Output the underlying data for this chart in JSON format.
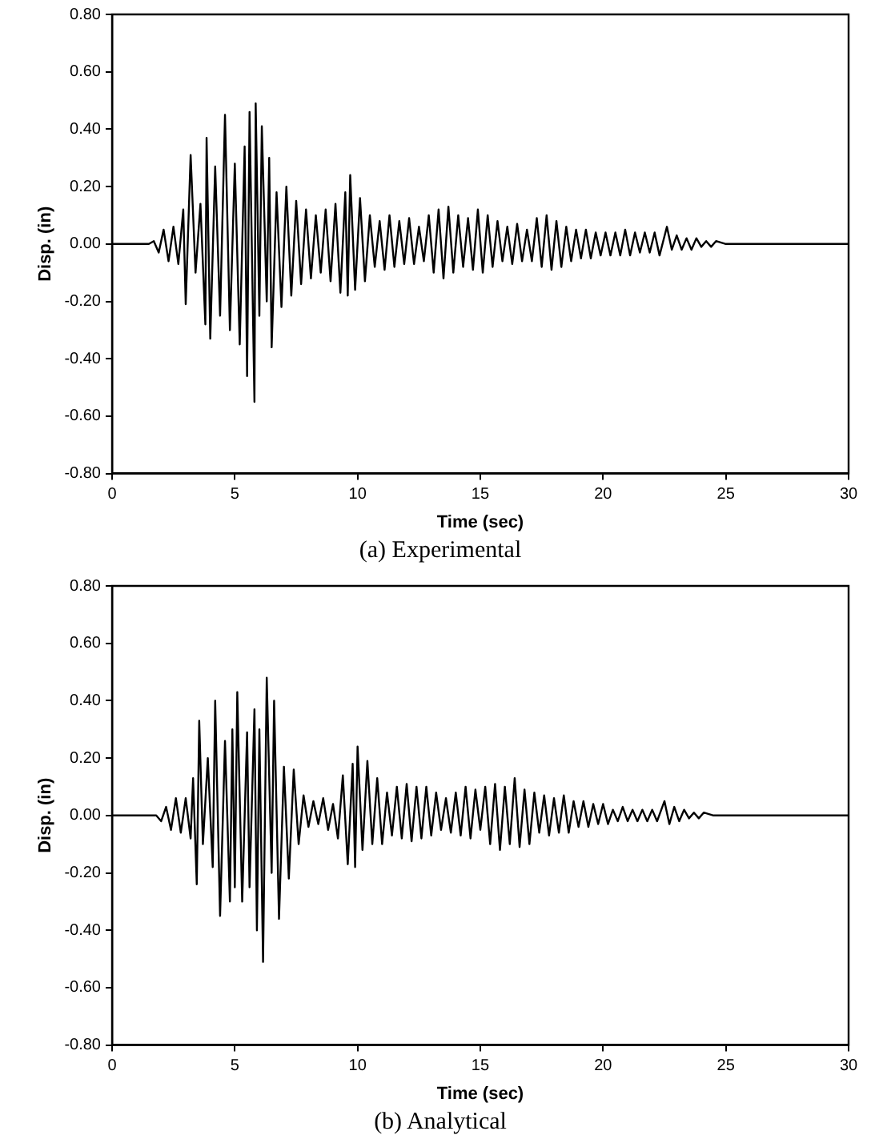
{
  "chart_data": [
    {
      "type": "line",
      "title": "(a) Experimental",
      "xlabel": "Time (sec)",
      "ylabel": "Disp. (in)",
      "xlim": [
        0,
        30
      ],
      "xticks": [
        0,
        5,
        10,
        15,
        20,
        25,
        30
      ],
      "ylim": [
        -0.8,
        0.8
      ],
      "yticks": [
        {
          "value": -0.8,
          "label": "-0.80"
        },
        {
          "value": -0.6,
          "label": "-0.60"
        },
        {
          "value": -0.4,
          "label": "-0.40"
        },
        {
          "value": -0.2,
          "label": "-0.20"
        },
        {
          "value": 0,
          "label": "0.00"
        },
        {
          "value": 0.2,
          "label": "0.20"
        },
        {
          "value": 0.4,
          "label": "0.40"
        },
        {
          "value": 0.6,
          "label": "0.60"
        },
        {
          "value": 0.8,
          "label": "0.80"
        }
      ],
      "grid": false,
      "legend": false,
      "series": [
        {
          "color": "#000000",
          "x": [
            0,
            1.5,
            1.7,
            1.9,
            2.1,
            2.3,
            2.5,
            2.7,
            2.9,
            3.0,
            3.2,
            3.4,
            3.6,
            3.8,
            3.85,
            4.0,
            4.2,
            4.4,
            4.6,
            4.8,
            5.0,
            5.2,
            5.4,
            5.5,
            5.6,
            5.8,
            5.85,
            6.0,
            6.1,
            6.3,
            6.4,
            6.5,
            6.7,
            6.9,
            7.1,
            7.3,
            7.5,
            7.7,
            7.9,
            8.1,
            8.3,
            8.5,
            8.7,
            8.9,
            9.1,
            9.3,
            9.5,
            9.6,
            9.7,
            9.9,
            10.1,
            10.3,
            10.5,
            10.7,
            10.9,
            11.1,
            11.3,
            11.5,
            11.7,
            11.9,
            12.1,
            12.3,
            12.5,
            12.7,
            12.9,
            13.1,
            13.3,
            13.5,
            13.7,
            13.9,
            14.1,
            14.3,
            14.5,
            14.7,
            14.9,
            15.1,
            15.3,
            15.5,
            15.7,
            15.9,
            16.1,
            16.3,
            16.5,
            16.7,
            16.9,
            17.1,
            17.3,
            17.5,
            17.7,
            17.9,
            18.1,
            18.3,
            18.5,
            18.7,
            18.9,
            19.1,
            19.3,
            19.5,
            19.7,
            19.9,
            20.1,
            20.3,
            20.5,
            20.7,
            20.9,
            21.1,
            21.3,
            21.5,
            21.7,
            21.9,
            22.1,
            22.3,
            22.6,
            22.8,
            23.0,
            23.2,
            23.4,
            23.6,
            23.8,
            24.0,
            24.2,
            24.4,
            24.6,
            25.0,
            30
          ],
          "values": [
            0,
            0,
            0.01,
            -0.03,
            0.05,
            -0.06,
            0.06,
            -0.07,
            0.12,
            -0.21,
            0.31,
            -0.1,
            0.14,
            -0.28,
            0.37,
            -0.33,
            0.27,
            -0.25,
            0.45,
            -0.3,
            0.28,
            -0.35,
            0.34,
            -0.46,
            0.46,
            -0.55,
            0.49,
            -0.25,
            0.41,
            -0.2,
            0.3,
            -0.36,
            0.18,
            -0.22,
            0.2,
            -0.18,
            0.15,
            -0.14,
            0.12,
            -0.12,
            0.1,
            -0.1,
            0.12,
            -0.13,
            0.14,
            -0.17,
            0.18,
            -0.18,
            0.24,
            -0.16,
            0.16,
            -0.13,
            0.1,
            -0.08,
            0.08,
            -0.09,
            0.1,
            -0.08,
            0.08,
            -0.07,
            0.09,
            -0.07,
            0.06,
            -0.06,
            0.1,
            -0.1,
            0.12,
            -0.12,
            0.13,
            -0.1,
            0.1,
            -0.08,
            0.09,
            -0.09,
            0.12,
            -0.1,
            0.1,
            -0.08,
            0.08,
            -0.06,
            0.06,
            -0.07,
            0.07,
            -0.06,
            0.05,
            -0.06,
            0.09,
            -0.08,
            0.1,
            -0.09,
            0.08,
            -0.08,
            0.06,
            -0.06,
            0.05,
            -0.05,
            0.05,
            -0.05,
            0.04,
            -0.04,
            0.04,
            -0.04,
            0.04,
            -0.04,
            0.05,
            -0.04,
            0.04,
            -0.03,
            0.04,
            -0.03,
            0.04,
            -0.04,
            0.06,
            -0.02,
            0.03,
            -0.02,
            0.02,
            -0.02,
            0.02,
            -0.01,
            0.01,
            -0.01,
            0.01,
            0,
            0
          ]
        }
      ]
    },
    {
      "type": "line",
      "title": "(b) Analytical",
      "xlabel": "Time (sec)",
      "ylabel": "Disp. (in)",
      "xlim": [
        0,
        30
      ],
      "xticks": [
        0,
        5,
        10,
        15,
        20,
        25,
        30
      ],
      "ylim": [
        -0.8,
        0.8
      ],
      "yticks": [
        {
          "value": -0.8,
          "label": "-0.80"
        },
        {
          "value": -0.6,
          "label": "-0.60"
        },
        {
          "value": -0.4,
          "label": "-0.40"
        },
        {
          "value": -0.2,
          "label": "-0.20"
        },
        {
          "value": 0,
          "label": "0.00"
        },
        {
          "value": 0.2,
          "label": "0.20"
        },
        {
          "value": 0.4,
          "label": "0.40"
        },
        {
          "value": 0.6,
          "label": "0.60"
        },
        {
          "value": 0.8,
          "label": "0.80"
        }
      ],
      "grid": false,
      "legend": false,
      "series": [
        {
          "color": "#000000",
          "x": [
            0,
            1.8,
            2.0,
            2.2,
            2.4,
            2.6,
            2.8,
            3.0,
            3.2,
            3.3,
            3.45,
            3.55,
            3.7,
            3.9,
            4.1,
            4.2,
            4.4,
            4.6,
            4.8,
            4.9,
            5.0,
            5.1,
            5.3,
            5.5,
            5.6,
            5.8,
            5.9,
            6.0,
            6.15,
            6.3,
            6.5,
            6.6,
            6.8,
            7.0,
            7.2,
            7.4,
            7.6,
            7.8,
            8.0,
            8.2,
            8.4,
            8.6,
            8.8,
            9.0,
            9.2,
            9.4,
            9.6,
            9.8,
            9.9,
            10.0,
            10.2,
            10.4,
            10.6,
            10.8,
            11.0,
            11.2,
            11.4,
            11.6,
            11.8,
            12.0,
            12.2,
            12.4,
            12.6,
            12.8,
            13.0,
            13.2,
            13.4,
            13.6,
            13.8,
            14.0,
            14.2,
            14.4,
            14.6,
            14.8,
            15.0,
            15.2,
            15.4,
            15.6,
            15.8,
            16.0,
            16.2,
            16.4,
            16.6,
            16.8,
            17.0,
            17.2,
            17.4,
            17.6,
            17.8,
            18.0,
            18.2,
            18.4,
            18.6,
            18.8,
            19.0,
            19.2,
            19.4,
            19.6,
            19.8,
            20.0,
            20.2,
            20.4,
            20.6,
            20.8,
            21.0,
            21.2,
            21.4,
            21.6,
            21.8,
            22.0,
            22.2,
            22.5,
            22.7,
            22.9,
            23.1,
            23.3,
            23.5,
            23.7,
            23.9,
            24.1,
            24.5,
            30
          ],
          "values": [
            0,
            0,
            -0.02,
            0.03,
            -0.05,
            0.06,
            -0.06,
            0.06,
            -0.08,
            0.13,
            -0.24,
            0.33,
            -0.1,
            0.2,
            -0.18,
            0.4,
            -0.35,
            0.26,
            -0.3,
            0.3,
            -0.25,
            0.43,
            -0.3,
            0.29,
            -0.25,
            0.37,
            -0.4,
            0.3,
            -0.51,
            0.48,
            -0.2,
            0.4,
            -0.36,
            0.17,
            -0.22,
            0.16,
            -0.1,
            0.07,
            -0.04,
            0.05,
            -0.03,
            0.06,
            -0.05,
            0.04,
            -0.08,
            0.14,
            -0.17,
            0.18,
            -0.18,
            0.24,
            -0.12,
            0.19,
            -0.1,
            0.13,
            -0.1,
            0.08,
            -0.07,
            0.1,
            -0.08,
            0.11,
            -0.09,
            0.1,
            -0.08,
            0.1,
            -0.07,
            0.08,
            -0.05,
            0.06,
            -0.06,
            0.08,
            -0.07,
            0.1,
            -0.08,
            0.09,
            -0.05,
            0.1,
            -0.1,
            0.11,
            -0.12,
            0.1,
            -0.1,
            0.13,
            -0.11,
            0.09,
            -0.1,
            0.08,
            -0.06,
            0.07,
            -0.07,
            0.06,
            -0.06,
            0.07,
            -0.06,
            0.05,
            -0.04,
            0.05,
            -0.04,
            0.04,
            -0.03,
            0.04,
            -0.03,
            0.02,
            -0.02,
            0.03,
            -0.02,
            0.02,
            -0.02,
            0.02,
            -0.02,
            0.02,
            -0.02,
            0.05,
            -0.03,
            0.03,
            -0.02,
            0.02,
            -0.01,
            0.01,
            -0.01,
            0.01,
            0,
            0
          ]
        }
      ]
    }
  ]
}
